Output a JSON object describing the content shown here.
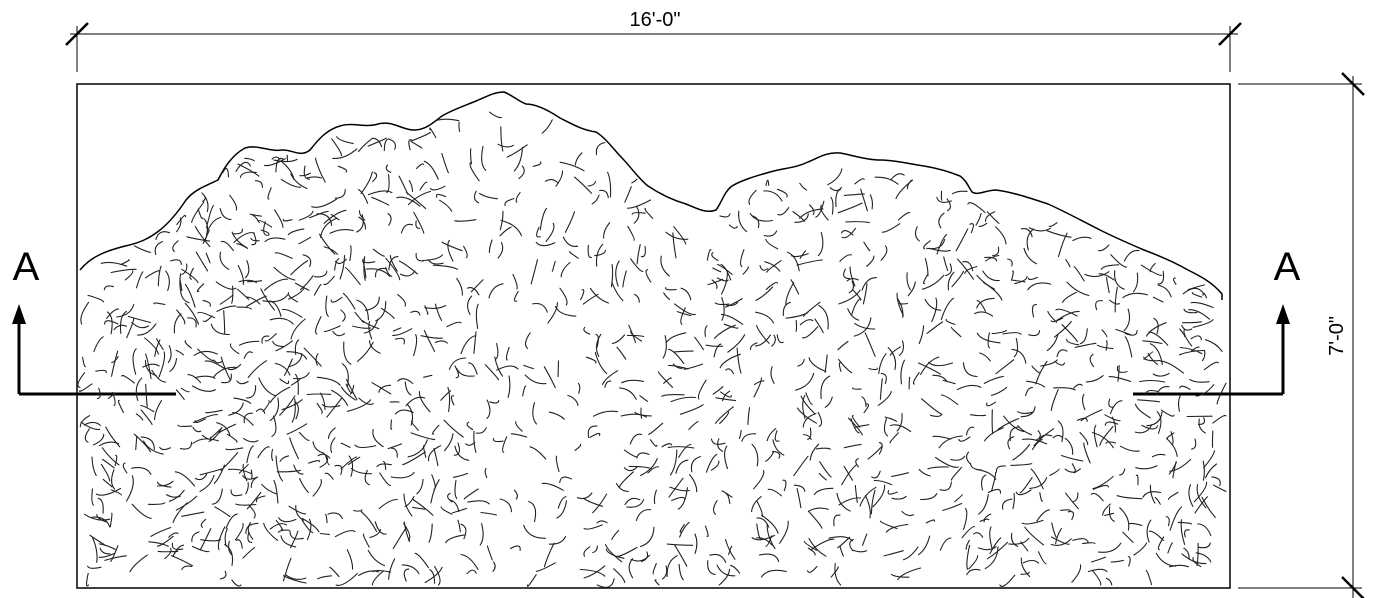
{
  "dimensions": {
    "width_label": "16'-0\"",
    "height_label": "7'-0\""
  },
  "section_markers": {
    "left_label": "A",
    "right_label": "A"
  }
}
